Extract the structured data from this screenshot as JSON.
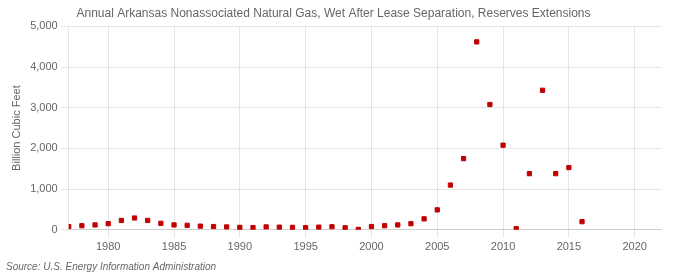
{
  "chart_data": {
    "type": "scatter",
    "title": "Annual Arkansas Nonassociated Natural Gas, Wet After Lease Separation, Reserves Extensions",
    "ylabel": "Billion Cubic Feet",
    "annotations": [
      "Source: U.S. Energy Information Administration"
    ],
    "x": [
      1977,
      1978,
      1979,
      1980,
      1981,
      1982,
      1983,
      1984,
      1985,
      1986,
      1987,
      1988,
      1989,
      1990,
      1991,
      1992,
      1993,
      1994,
      1995,
      1996,
      1997,
      1998,
      1999,
      2000,
      2001,
      2002,
      2003,
      2004,
      2005,
      2006,
      2007,
      2008,
      2009,
      2010,
      2011,
      2012,
      2013,
      2014,
      2015,
      2016
    ],
    "values": [
      80,
      100,
      120,
      150,
      230,
      290,
      230,
      160,
      120,
      110,
      90,
      80,
      70,
      60,
      55,
      70,
      65,
      60,
      55,
      65,
      75,
      50,
      10,
      80,
      100,
      120,
      150,
      270,
      490,
      1100,
      1750,
      4620,
      3080,
      2080,
      30,
      1380,
      3430,
      1380,
      1530,
      200
    ],
    "color": "#c00000",
    "marker": "square",
    "xlim": [
      1977,
      2022
    ],
    "xticks": [
      1980,
      1985,
      1990,
      1995,
      2000,
      2005,
      2010,
      2015,
      2020
    ],
    "ylim": [
      0,
      5000
    ],
    "yticks": [
      0,
      {
        "value": 1000,
        "label": "1,000"
      },
      {
        "value": 2000,
        "label": "2,000"
      },
      {
        "value": 3000,
        "label": "3,000"
      },
      {
        "value": 4000,
        "label": "4,000"
      },
      {
        "value": 5000,
        "label": "5,000"
      }
    ],
    "grid": true
  }
}
